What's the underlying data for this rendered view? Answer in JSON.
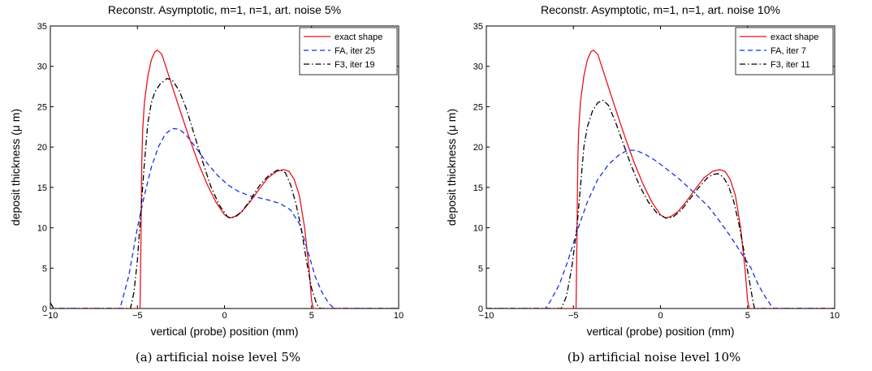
{
  "chart_data": [
    {
      "type": "line",
      "title": "Reconstr. Asymptotic, m=1, n=1, art. noise 5%",
      "xlabel": "vertical (probe) position (mm)",
      "ylabel": "deposit thickness (μ m)",
      "xlim": [
        -10,
        10
      ],
      "ylim": [
        0,
        35
      ],
      "xticks": [
        -10,
        -5,
        0,
        5,
        10
      ],
      "yticks": [
        0,
        5,
        10,
        15,
        20,
        25,
        30,
        35
      ],
      "xtick_labels": [
        "−10",
        "−5",
        "0",
        "5",
        "10"
      ],
      "ytick_labels": [
        "0",
        "5",
        "10",
        "15",
        "20",
        "25",
        "30",
        "35"
      ],
      "grid": false,
      "legend": "top-right",
      "caption": "(a) artificial noise level 5%",
      "series": [
        {
          "name": "exact shape",
          "color": "#e8141c",
          "dash": "solid",
          "points": [
            [
              -10,
              0
            ],
            [
              -4.85,
              0
            ],
            [
              -4.8,
              8
            ],
            [
              -4.75,
              18
            ],
            [
              -4.7,
              22
            ],
            [
              -4.6,
              25.5
            ],
            [
              -4.4,
              28.8
            ],
            [
              -4.2,
              30.8
            ],
            [
              -4.0,
              31.8
            ],
            [
              -3.85,
              32
            ],
            [
              -3.6,
              31.5
            ],
            [
              -3.3,
              29.5
            ],
            [
              -3.0,
              27.5
            ],
            [
              -2.5,
              24.2
            ],
            [
              -2.0,
              21
            ],
            [
              -1.5,
              18
            ],
            [
              -1.0,
              15.4
            ],
            [
              -0.5,
              13.2
            ],
            [
              0,
              11.6
            ],
            [
              0.3,
              11.2
            ],
            [
              0.6,
              11.4
            ],
            [
              1.0,
              12
            ],
            [
              1.5,
              13.3
            ],
            [
              2.0,
              14.8
            ],
            [
              2.5,
              16.2
            ],
            [
              3.0,
              17
            ],
            [
              3.4,
              17.2
            ],
            [
              3.7,
              17
            ],
            [
              4.0,
              16
            ],
            [
              4.3,
              14
            ],
            [
              4.6,
              10
            ],
            [
              4.85,
              5
            ],
            [
              5.0,
              1
            ],
            [
              5.1,
              0
            ],
            [
              10,
              0
            ]
          ]
        },
        {
          "name": "FA, iter 25",
          "color": "#1a2ee8",
          "dash": "dashed",
          "points": [
            [
              -10,
              0
            ],
            [
              -6,
              0
            ],
            [
              -5.5,
              4
            ],
            [
              -5.0,
              10
            ],
            [
              -4.6,
              14
            ],
            [
              -4.2,
              17.5
            ],
            [
              -3.8,
              20
            ],
            [
              -3.4,
              21.6
            ],
            [
              -3.0,
              22.3
            ],
            [
              -2.6,
              22.2
            ],
            [
              -2.2,
              21.5
            ],
            [
              -1.6,
              19.8
            ],
            [
              -1.0,
              18
            ],
            [
              -0.4,
              16.5
            ],
            [
              0.2,
              15.3
            ],
            [
              0.8,
              14.5
            ],
            [
              1.4,
              14
            ],
            [
              2.0,
              13.7
            ],
            [
              2.6,
              13.4
            ],
            [
              3.2,
              13
            ],
            [
              3.8,
              12.2
            ],
            [
              4.3,
              10.5
            ],
            [
              4.8,
              7
            ],
            [
              5.2,
              4
            ],
            [
              5.6,
              2
            ],
            [
              6.0,
              0.6
            ],
            [
              6.3,
              0
            ],
            [
              10,
              0
            ]
          ]
        },
        {
          "name": "F3, iter 19",
          "color": "#000000",
          "dash": "dashdot",
          "points": [
            [
              -10,
              0.7
            ],
            [
              -9.8,
              0
            ],
            [
              -5.4,
              0
            ],
            [
              -5.2,
              2
            ],
            [
              -5.0,
              6
            ],
            [
              -4.8,
              12
            ],
            [
              -4.6,
              18
            ],
            [
              -4.4,
              23
            ],
            [
              -4.2,
              25.5
            ],
            [
              -4.0,
              26.8
            ],
            [
              -3.7,
              27.8
            ],
            [
              -3.3,
              28.5
            ],
            [
              -3.0,
              28.3
            ],
            [
              -2.6,
              27
            ],
            [
              -2.2,
              24.8
            ],
            [
              -1.8,
              22
            ],
            [
              -1.3,
              18.5
            ],
            [
              -0.8,
              15.2
            ],
            [
              -0.3,
              12.8
            ],
            [
              0.2,
              11.3
            ],
            [
              0.6,
              11.3
            ],
            [
              1.0,
              12
            ],
            [
              1.5,
              13.5
            ],
            [
              2.0,
              15.2
            ],
            [
              2.5,
              16.4
            ],
            [
              3.0,
              17.1
            ],
            [
              3.2,
              17.2
            ],
            [
              3.5,
              16.8
            ],
            [
              3.8,
              15.3
            ],
            [
              4.1,
              13
            ],
            [
              4.4,
              10
            ],
            [
              4.7,
              6
            ],
            [
              5.0,
              2.5
            ],
            [
              5.3,
              0.5
            ],
            [
              5.5,
              0
            ],
            [
              10,
              0
            ]
          ]
        }
      ]
    },
    {
      "type": "line",
      "title": "Reconstr. Asymptotic, m=1, n=1, art. noise 10%",
      "xlabel": "vertical (probe) position (mm)",
      "ylabel": "deposit thickness (μ m)",
      "xlim": [
        -10,
        10
      ],
      "ylim": [
        0,
        35
      ],
      "xticks": [
        -10,
        -5,
        0,
        5,
        10
      ],
      "yticks": [
        0,
        5,
        10,
        15,
        20,
        25,
        30,
        35
      ],
      "xtick_labels": [
        "−10",
        "−5",
        "0",
        "5",
        "10"
      ],
      "ytick_labels": [
        "0",
        "5",
        "10",
        "15",
        "20",
        "25",
        "30",
        "35"
      ],
      "grid": false,
      "legend": "top-right",
      "caption": "(b) artificial noise level 10%",
      "series": [
        {
          "name": "exact shape",
          "color": "#e8141c",
          "dash": "solid",
          "points": [
            [
              -10,
              0
            ],
            [
              -4.85,
              0
            ],
            [
              -4.8,
              8
            ],
            [
              -4.75,
              18
            ],
            [
              -4.7,
              22
            ],
            [
              -4.6,
              25.5
            ],
            [
              -4.4,
              28.8
            ],
            [
              -4.2,
              30.8
            ],
            [
              -4.0,
              31.8
            ],
            [
              -3.85,
              32
            ],
            [
              -3.6,
              31.5
            ],
            [
              -3.3,
              29.5
            ],
            [
              -3.0,
              27.5
            ],
            [
              -2.5,
              24.2
            ],
            [
              -2.0,
              21
            ],
            [
              -1.5,
              18
            ],
            [
              -1.0,
              15.4
            ],
            [
              -0.5,
              13.2
            ],
            [
              0,
              11.6
            ],
            [
              0.3,
              11.2
            ],
            [
              0.6,
              11.4
            ],
            [
              1.0,
              12
            ],
            [
              1.5,
              13.3
            ],
            [
              2.0,
              14.8
            ],
            [
              2.5,
              16.2
            ],
            [
              3.0,
              17
            ],
            [
              3.4,
              17.2
            ],
            [
              3.7,
              17
            ],
            [
              4.0,
              16
            ],
            [
              4.3,
              14
            ],
            [
              4.6,
              10
            ],
            [
              4.85,
              5
            ],
            [
              5.0,
              1
            ],
            [
              5.1,
              0
            ],
            [
              10,
              0
            ]
          ]
        },
        {
          "name": "FA, iter 7",
          "color": "#1a2ee8",
          "dash": "dashed",
          "points": [
            [
              -10,
              0
            ],
            [
              -6.6,
              0
            ],
            [
              -6.3,
              1
            ],
            [
              -5.8,
              3
            ],
            [
              -5.3,
              6
            ],
            [
              -4.8,
              9.5
            ],
            [
              -4.2,
              13.2
            ],
            [
              -3.6,
              16
            ],
            [
              -3.0,
              17.8
            ],
            [
              -2.4,
              19
            ],
            [
              -1.9,
              19.6
            ],
            [
              -1.4,
              19.6
            ],
            [
              -0.8,
              19
            ],
            [
              -0.2,
              18.2
            ],
            [
              0.4,
              17.2
            ],
            [
              1.0,
              16.2
            ],
            [
              1.6,
              15
            ],
            [
              2.2,
              13.8
            ],
            [
              2.8,
              12.5
            ],
            [
              3.4,
              10.8
            ],
            [
              4.0,
              9
            ],
            [
              4.6,
              7
            ],
            [
              5.2,
              5
            ],
            [
              5.6,
              3
            ],
            [
              6.0,
              1.5
            ],
            [
              6.4,
              0.2
            ],
            [
              6.5,
              0
            ],
            [
              10,
              0
            ]
          ]
        },
        {
          "name": "F3, iter 11",
          "color": "#000000",
          "dash": "dashdot",
          "points": [
            [
              -10,
              0
            ],
            [
              -5.7,
              0
            ],
            [
              -5.4,
              1.5
            ],
            [
              -5.1,
              5
            ],
            [
              -4.8,
              10
            ],
            [
              -4.6,
              15
            ],
            [
              -4.4,
              20
            ],
            [
              -4.2,
              22.5
            ],
            [
              -3.9,
              24.5
            ],
            [
              -3.6,
              25.5
            ],
            [
              -3.3,
              25.8
            ],
            [
              -3.0,
              25.2
            ],
            [
              -2.6,
              23.2
            ],
            [
              -2.2,
              20.8
            ],
            [
              -1.7,
              17.8
            ],
            [
              -1.2,
              15.2
            ],
            [
              -0.7,
              13.2
            ],
            [
              -0.2,
              11.8
            ],
            [
              0.3,
              11.2
            ],
            [
              0.7,
              11.3
            ],
            [
              1.2,
              12.2
            ],
            [
              1.7,
              13.6
            ],
            [
              2.2,
              15
            ],
            [
              2.7,
              16.2
            ],
            [
              3.0,
              16.6
            ],
            [
              3.3,
              16.7
            ],
            [
              3.6,
              16.3
            ],
            [
              3.9,
              15.2
            ],
            [
              4.2,
              13.3
            ],
            [
              4.5,
              10.5
            ],
            [
              4.8,
              7
            ],
            [
              5.1,
              3.5
            ],
            [
              5.3,
              1
            ],
            [
              5.4,
              0
            ],
            [
              10,
              0
            ]
          ]
        }
      ]
    }
  ]
}
